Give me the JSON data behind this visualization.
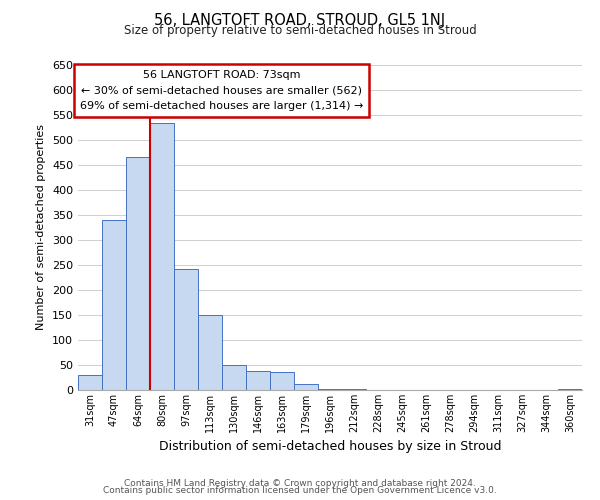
{
  "title": "56, LANGTOFT ROAD, STROUD, GL5 1NJ",
  "subtitle": "Size of property relative to semi-detached houses in Stroud",
  "xlabel": "Distribution of semi-detached houses by size in Stroud",
  "ylabel": "Number of semi-detached properties",
  "bar_labels": [
    "31sqm",
    "47sqm",
    "64sqm",
    "80sqm",
    "97sqm",
    "113sqm",
    "130sqm",
    "146sqm",
    "163sqm",
    "179sqm",
    "196sqm",
    "212sqm",
    "228sqm",
    "245sqm",
    "261sqm",
    "278sqm",
    "294sqm",
    "311sqm",
    "327sqm",
    "344sqm",
    "360sqm"
  ],
  "bar_values": [
    30,
    340,
    467,
    535,
    243,
    150,
    50,
    38,
    37,
    12,
    2,
    2,
    1,
    0,
    0,
    0,
    0,
    1,
    0,
    0,
    3
  ],
  "bar_color": "#c6d9f0",
  "bar_edge_color": "#4472c4",
  "ylim": [
    0,
    650
  ],
  "yticks": [
    0,
    50,
    100,
    150,
    200,
    250,
    300,
    350,
    400,
    450,
    500,
    550,
    600,
    650
  ],
  "property_line_x": 2.5,
  "property_line_color": "#cc0000",
  "annotation_title": "56 LANGTOFT ROAD: 73sqm",
  "annotation_line1": "← 30% of semi-detached houses are smaller (562)",
  "annotation_line2": "69% of semi-detached houses are larger (1,314) →",
  "annotation_box_color": "#ffffff",
  "annotation_box_edge": "#cc0000",
  "footer1": "Contains HM Land Registry data © Crown copyright and database right 2024.",
  "footer2": "Contains public sector information licensed under the Open Government Licence v3.0.",
  "bg_color": "#ffffff",
  "grid_color": "#c8c8c8"
}
